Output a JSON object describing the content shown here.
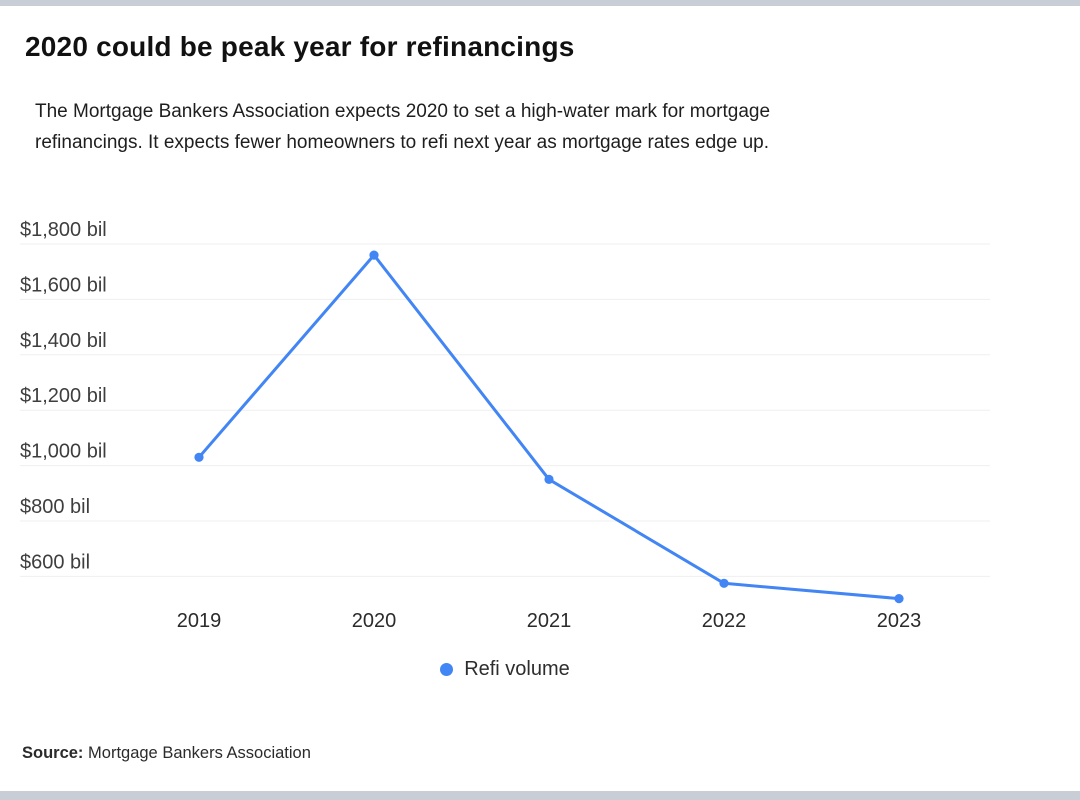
{
  "page": {
    "title": "2020 could be peak year for refinancings",
    "subtitle_line1": "The Mortgage Bankers Association expects 2020 to set a high-water mark for mortgage",
    "subtitle_line2": "refinancings. It expects fewer homeowners to refi next year as mortgage rates edge up.",
    "source_label": "Source:",
    "source_text": "Mortgage Bankers Association"
  },
  "chart_data": {
    "type": "line",
    "title": "2020 could be peak year for refinancings",
    "categories": [
      "2019",
      "2020",
      "2021",
      "2022",
      "2023"
    ],
    "series": [
      {
        "name": "Refi volume",
        "values": [
          1030,
          1760,
          950,
          575,
          520
        ]
      }
    ],
    "unit": "$ billions",
    "xlabel": "",
    "ylabel": "",
    "ylim": [
      500,
      1800
    ],
    "grid": true,
    "y_ticks": [
      {
        "value": 1800,
        "label": "$1,800 bil"
      },
      {
        "value": 1600,
        "label": "$1,600 bil"
      },
      {
        "value": 1400,
        "label": "$1,400 bil"
      },
      {
        "value": 1200,
        "label": "$1,200 bil"
      },
      {
        "value": 1000,
        "label": "$1,000 bil"
      },
      {
        "value": 800,
        "label": "$800 bil"
      },
      {
        "value": 600,
        "label": "$600 bil"
      }
    ],
    "legend": {
      "position": "bottom-center",
      "items": [
        {
          "label": "Refi volume",
          "color": "#4285f4"
        }
      ]
    },
    "line_color": "#4285f4",
    "point_color": "#4285f4",
    "gridline_color": "#efefef"
  },
  "colors": {
    "accent_blue": "#4285f4",
    "window_bar": "#c9cdd6"
  }
}
